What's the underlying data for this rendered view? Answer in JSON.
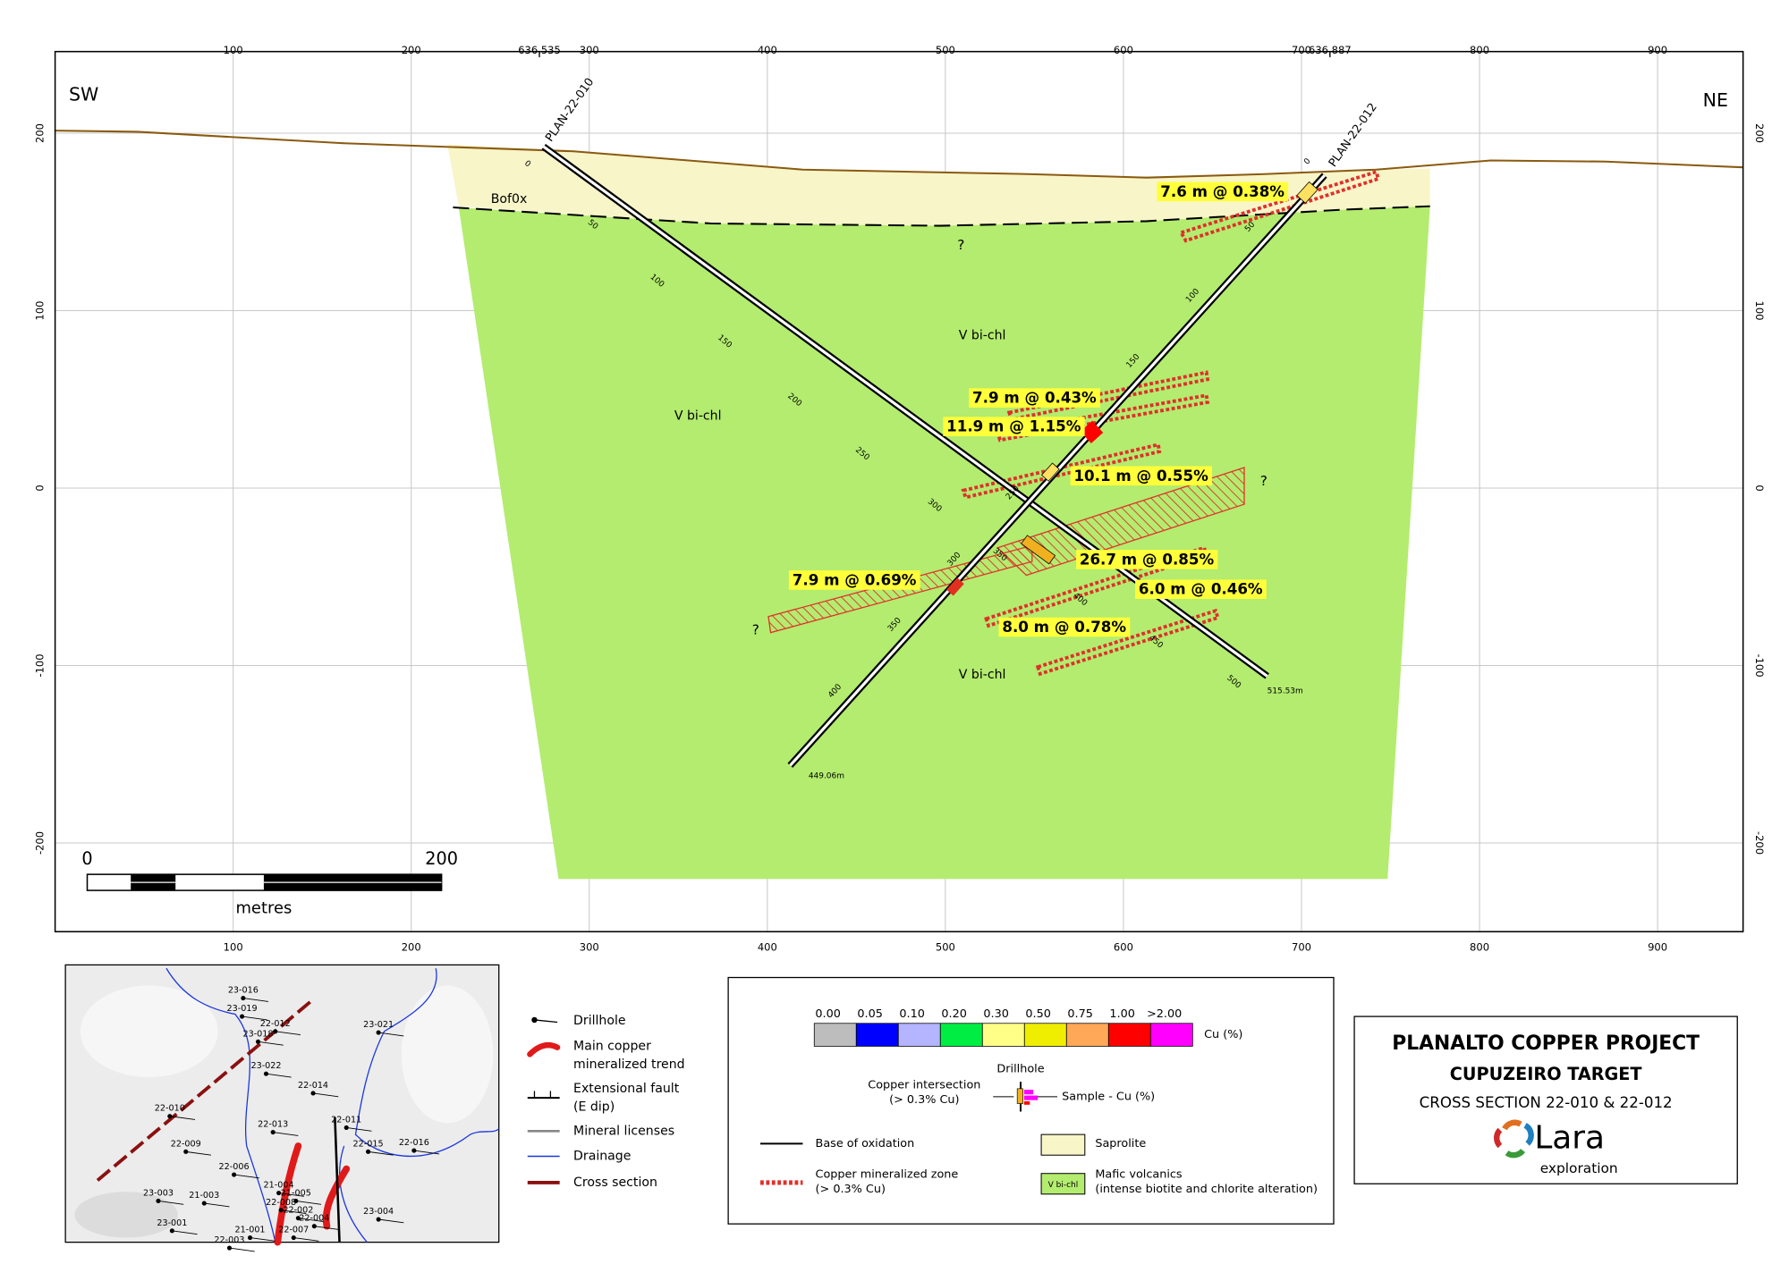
{
  "section": {
    "direction_left": "SW",
    "direction_right": "NE",
    "xlim": [
      0,
      948
    ],
    "ylim": [
      -250,
      246
    ],
    "x_ticks": [
      100,
      200,
      300,
      400,
      500,
      600,
      700,
      800,
      900
    ],
    "x_coordinate_labels": [
      {
        "value": 272,
        "label": "636,535"
      },
      {
        "value": 716,
        "label": "636,887"
      }
    ],
    "y_ticks": [
      200,
      100,
      0,
      -100,
      -200
    ],
    "holes": [
      {
        "name": "PLAN-22-010",
        "end_label": "515.53m",
        "depths": [
          0,
          50,
          100,
          150,
          200,
          250,
          300,
          350,
          400,
          450,
          500
        ]
      },
      {
        "name": "PLAN-22-012",
        "end_label": "449.06m",
        "depths": [
          0,
          50,
          100,
          150,
          200,
          250,
          300,
          350,
          400
        ]
      }
    ],
    "unit_labels": [
      "Bof0x",
      "V bi-chl",
      "V bi-chl",
      "V bi-chl"
    ],
    "query_marks": [
      "?",
      "?",
      "?"
    ],
    "intercepts": [
      "7.6 m @ 0.38%",
      "7.9 m @ 0.43%",
      "11.9 m @ 1.15%",
      "10.1 m @ 0.55%",
      "26.7 m @ 0.85%",
      "6.0 m @ 0.46%",
      "7.9 m @ 0.69%",
      "8.0 m @ 0.78%"
    ]
  },
  "scale_bar": {
    "start": "0",
    "end": "200",
    "unit": "metres"
  },
  "inset_map": {
    "holes": [
      "23-016",
      "23-019",
      "22-012",
      "23-018",
      "23-021",
      "23-022",
      "22-014",
      "22-010",
      "22-013",
      "22-011",
      "22-009",
      "22-006",
      "22-015",
      "22-016",
      "23-003",
      "21-003",
      "21-004",
      "21-005",
      "22-008",
      "22-002",
      "22-004",
      "23-004",
      "23-001",
      "21-001",
      "22-007",
      "22-003"
    ]
  },
  "inset_legend": [
    [
      "Drillhole"
    ],
    [
      "Main copper",
      "mineralized trend"
    ],
    [
      "Extensional fault",
      "(E dip)"
    ],
    [
      "Mineral licenses"
    ],
    [
      "Drainage"
    ],
    [
      "Cross section"
    ]
  ],
  "legend": {
    "cu_scale": [
      "0.00",
      "0.05",
      "0.10",
      "0.20",
      "0.30",
      "0.50",
      "0.75",
      "1.00",
      ">2.00"
    ],
    "cu_colors": [
      "#bdbdbd",
      "#0000ff",
      "#b4b4ff",
      "#00ee44",
      "#ffff88",
      "#f0ee00",
      "#ffa858",
      "#ff0000",
      "#ff00ff"
    ],
    "cu_unit": "Cu (%)",
    "drillhole": "Drillhole",
    "intersection": [
      "Copper intersection",
      "(> 0.3% Cu)"
    ],
    "sample": "Sample - Cu (%)",
    "base_oxidation": "Base of oxidation",
    "saprolite": "Saprolite",
    "zone": [
      "Copper mineralized zone",
      "(> 0.3% Cu)"
    ],
    "vbichl": "V bi-chl",
    "mafic": [
      "Mafic volcanics",
      "(intense biotite and chlorite alteration)"
    ]
  },
  "title_block": {
    "title": "PLANALTO COPPER PROJECT",
    "subtitle": "CUPUZEIRO TARGET",
    "section": "CROSS SECTION 22-010 & 22-012",
    "logo": "Lara",
    "logo_sub": "exploration"
  }
}
